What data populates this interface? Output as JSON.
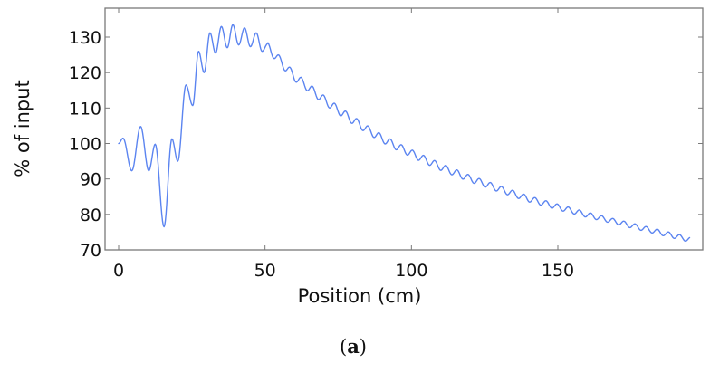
{
  "chart_data": {
    "type": "line",
    "title": "",
    "xlabel": "Position (cm)",
    "ylabel": "% of input",
    "caption": {
      "open": "(",
      "letter": "a",
      "close": ")"
    },
    "xlim": [
      -3,
      201
    ],
    "ylim": [
      70,
      138
    ],
    "xticks": [
      0,
      50,
      100,
      150
    ],
    "yticks": [
      70,
      80,
      90,
      100,
      110,
      120,
      130
    ],
    "grid": false,
    "legend": null,
    "line_color": "#5b84f0",
    "oscillation_period_cm": 3.8,
    "series": [
      {
        "name": "% of input",
        "x": [
          0,
          1.5,
          4.5,
          7.5,
          10.3,
          12.5,
          15.5,
          18.2,
          20.2,
          23.0,
          25.3,
          27.3,
          29.2,
          31.2,
          33.1,
          35.1,
          37.1,
          39.0,
          41.0,
          43.0,
          45.0,
          47.0,
          49.0,
          51.0,
          55,
          60,
          65,
          70,
          75,
          80,
          85,
          90,
          95,
          100,
          110,
          120,
          130,
          140,
          150,
          160,
          170,
          180,
          190,
          195
        ],
        "y": [
          100,
          101.5,
          92.3,
          104.8,
          92.3,
          99.8,
          76.5,
          101.3,
          95,
          116.5,
          110.7,
          126,
          120,
          131.2,
          125.5,
          133,
          127,
          133.5,
          127.8,
          132.6,
          127.3,
          131.2,
          126,
          128.2,
          124.5,
          120,
          116.8,
          113.5,
          110.5,
          107.7,
          105,
          102.5,
          100.3,
          98.3,
          94.5,
          91.2,
          88.3,
          85.5,
          83.2,
          81,
          79,
          77,
          75,
          74
        ]
      }
    ]
  }
}
